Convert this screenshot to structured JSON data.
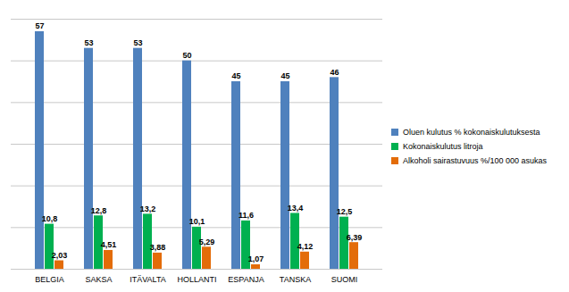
{
  "chart_data": {
    "type": "bar",
    "categories": [
      "BELGIA",
      "SAKSA",
      "ITÄVALTA",
      "HOLLANTI",
      "ESPANJA",
      "TANSKA",
      "SUOMI"
    ],
    "series": [
      {
        "name": "Oluen kulutus % kokonaiskulutuksesta",
        "color": "#4f81bd",
        "values": [
          57,
          53,
          53,
          50,
          45,
          45,
          46
        ]
      },
      {
        "name": "Kokonaiskulutus litroja",
        "color": "#00b050",
        "values": [
          10.8,
          12.8,
          13.2,
          10.1,
          11.6,
          13.4,
          12.5
        ],
        "value_labels": [
          "10,8",
          "12,8",
          "13,2",
          "10,1",
          "11,6",
          "13,4",
          "12,5"
        ]
      },
      {
        "name": "Alkoholi sairastuvuus %/100 000 asukas",
        "color": "#e36c09",
        "values": [
          2.03,
          4.51,
          3.88,
          5.29,
          1.07,
          4.12,
          6.39
        ],
        "value_labels": [
          "2,03",
          "4,51",
          "3,88",
          "5,29",
          "1,07",
          "4,12",
          "6,39"
        ]
      }
    ],
    "ylim": [
      0,
      60
    ],
    "yticks": [
      0,
      10,
      20,
      30,
      40,
      50,
      60
    ],
    "grid": true,
    "tick_labels": "x",
    "data_labels": true,
    "legend": "right"
  }
}
